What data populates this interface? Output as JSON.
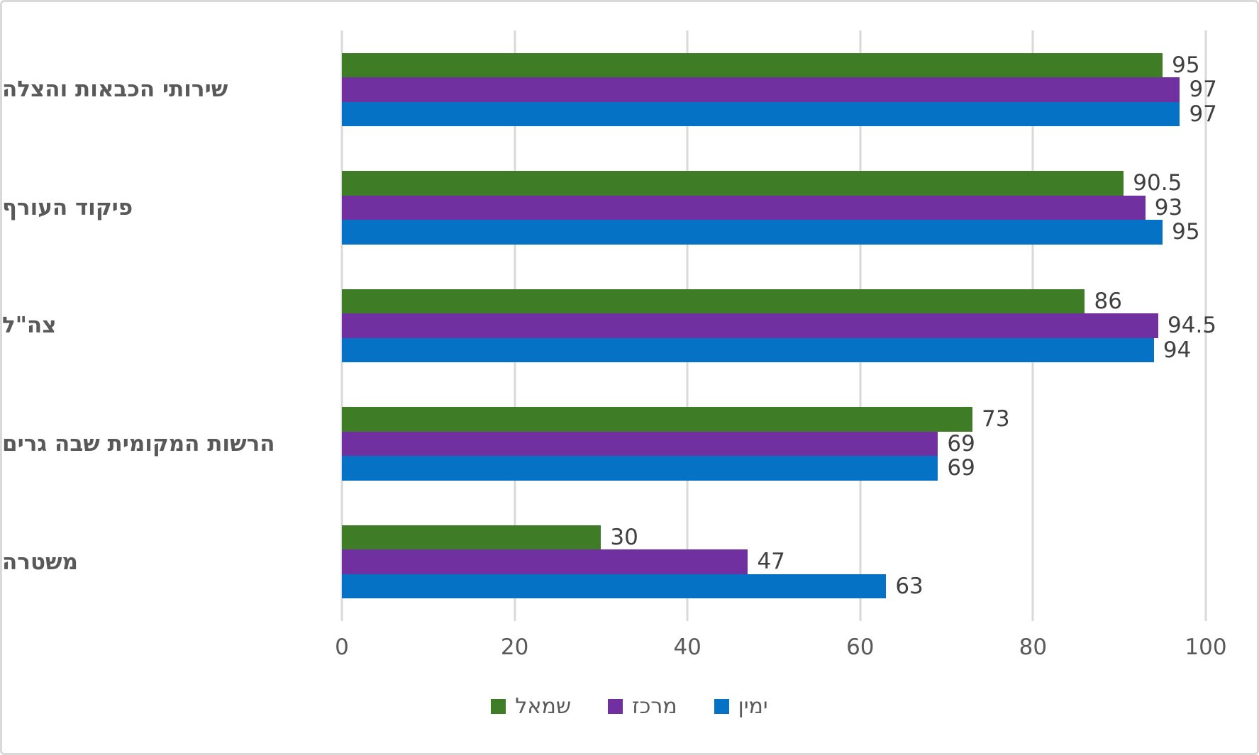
{
  "chart_data": {
    "type": "bar",
    "orientation": "horizontal",
    "title": "",
    "xlabel": "",
    "ylabel": "",
    "categories": [
      "שירותי הכבאות והצלה",
      "פיקוד העורף",
      "צה\"ל",
      "הרשות המקומית שבה גרים",
      "משטרה"
    ],
    "series": [
      {
        "name": "שמאל",
        "color": "#3e7d26",
        "values": [
          95,
          90.5,
          86,
          73,
          30
        ]
      },
      {
        "name": "מרכז",
        "color": "#7030a0",
        "values": [
          97,
          93,
          94.5,
          69,
          47
        ]
      },
      {
        "name": "ימין",
        "color": "#0572c6",
        "values": [
          97,
          95,
          94,
          69,
          63
        ]
      }
    ],
    "xlim": [
      0,
      100
    ],
    "x_ticks": [
      0,
      20,
      40,
      60,
      80,
      100
    ],
    "grid": "vertical-only",
    "legend_position": "bottom-center",
    "value_labels": "end-of-bar"
  },
  "styles": {
    "frame_border_color": "#d9d9d9",
    "gridline_color": "#d9d9d9",
    "value_label_color": "#404040",
    "category_label_color": "#595959",
    "tick_label_color": "#595959",
    "legend_label_color": "#595959",
    "background": "#ffffff"
  }
}
